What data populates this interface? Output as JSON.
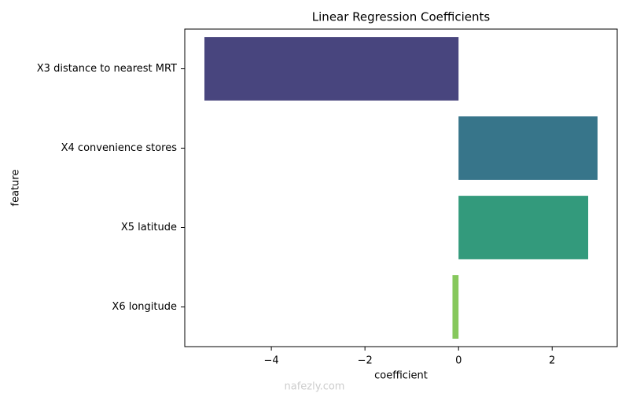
{
  "chart_data": {
    "type": "barh",
    "title": "Linear Regression Coefficients",
    "xlabel": "coefficient",
    "ylabel": "feature",
    "categories": [
      "X3 distance to nearest MRT",
      "X4 convenience stores",
      "X5 latitude",
      "X6 longitude"
    ],
    "values": [
      -5.43,
      2.97,
      2.77,
      -0.13
    ],
    "colors": [
      "#48457e",
      "#37758a",
      "#339a7c",
      "#86c85c"
    ],
    "xlim": [
      -5.85,
      3.39
    ],
    "xticks": [
      {
        "value": -4,
        "label": "−4"
      },
      {
        "value": -2,
        "label": "−2"
      },
      0,
      2
    ],
    "grid": false,
    "watermark": "nafezly.com"
  }
}
